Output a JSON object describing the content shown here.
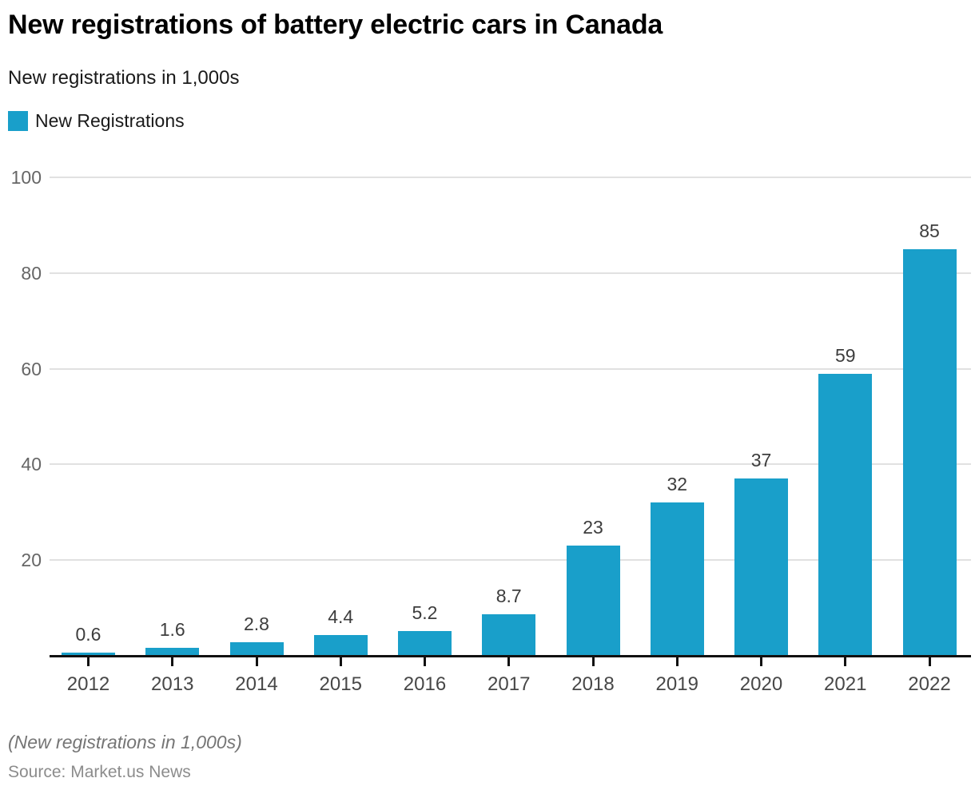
{
  "header": {
    "title": "New registrations of battery electric cars in Canada",
    "subtitle": "New registrations in 1,000s"
  },
  "legend": {
    "items": [
      {
        "label": "New Registrations",
        "color": "#199fca"
      }
    ]
  },
  "chart_data": {
    "type": "bar",
    "title": "New registrations of battery electric cars in Canada",
    "series_name": "New Registrations",
    "categories": [
      "2012",
      "2013",
      "2014",
      "2015",
      "2016",
      "2017",
      "2018",
      "2019",
      "2020",
      "2021",
      "2022"
    ],
    "values": [
      0.6,
      1.6,
      2.8,
      4.4,
      5.2,
      8.7,
      23,
      32,
      37,
      59,
      85
    ],
    "value_labels": [
      "0.6",
      "1.6",
      "2.8",
      "4.4",
      "5.2",
      "8.7",
      "23",
      "32",
      "37",
      "59",
      "85"
    ],
    "xlabel": "",
    "ylabel": "New registrations in 1,000s",
    "ylim": [
      0,
      100
    ],
    "yticks": [
      20,
      40,
      60,
      80,
      100
    ],
    "grid": true,
    "legend_position": "top-left",
    "bar_color": "#199fca",
    "gridline_color": "#e1e1e1",
    "axis_line_color": "#111111"
  },
  "footer": {
    "note": "(New registrations in 1,000s)",
    "source": "Source: Market.us News"
  }
}
